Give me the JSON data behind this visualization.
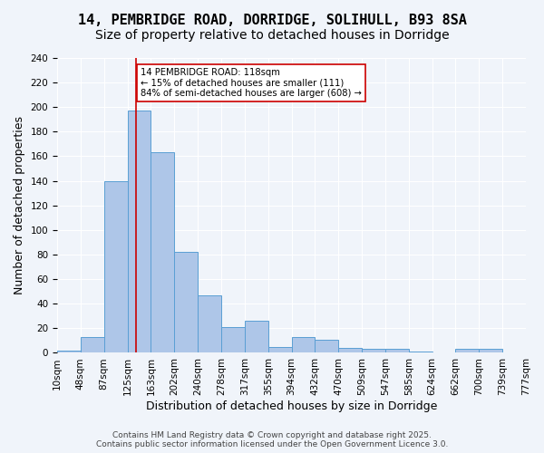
{
  "title1": "14, PEMBRIDGE ROAD, DORRIDGE, SOLIHULL, B93 8SA",
  "title2": "Size of property relative to detached houses in Dorridge",
  "xlabel": "Distribution of detached houses by size in Dorridge",
  "ylabel": "Number of detached properties",
  "bin_labels": [
    "10sqm",
    "48sqm",
    "87sqm",
    "125sqm",
    "163sqm",
    "202sqm",
    "240sqm",
    "278sqm",
    "317sqm",
    "355sqm",
    "394sqm",
    "432sqm",
    "470sqm",
    "509sqm",
    "547sqm",
    "585sqm",
    "624sqm",
    "662sqm",
    "700sqm",
    "739sqm",
    "777sqm"
  ],
  "bar_values": [
    2,
    13,
    140,
    197,
    163,
    82,
    47,
    21,
    26,
    5,
    13,
    11,
    4,
    3,
    3,
    1,
    0,
    3,
    3,
    0
  ],
  "bar_color": "#aec6e8",
  "bar_edge_color": "#5a9fd4",
  "vline_x": 2.85,
  "vline_color": "#cc0000",
  "annotation_text": "14 PEMBRIDGE ROAD: 118sqm\n← 15% of detached houses are smaller (111)\n84% of semi-detached houses are larger (608) →",
  "annotation_box_color": "#ffffff",
  "annotation_box_edge": "#cc0000",
  "ylim": [
    0,
    240
  ],
  "yticks": [
    0,
    20,
    40,
    60,
    80,
    100,
    120,
    140,
    160,
    180,
    200,
    220,
    240
  ],
  "footnote": "Contains HM Land Registry data © Crown copyright and database right 2025.\nContains public sector information licensed under the Open Government Licence 3.0.",
  "background_color": "#f0f4fa",
  "grid_color": "#ffffff",
  "title_fontsize": 11,
  "subtitle_fontsize": 10,
  "axis_fontsize": 9,
  "tick_fontsize": 7.5,
  "footnote_fontsize": 6.5
}
